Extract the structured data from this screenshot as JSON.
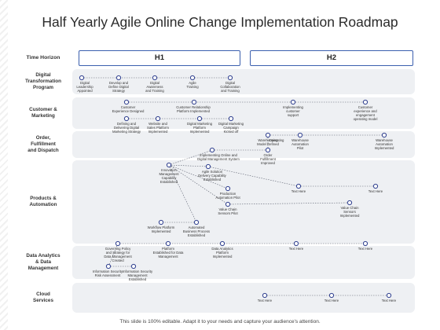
{
  "title": "Half Yearly Agile Online Change Implementation Roadmap",
  "time_horizon_label": "Time Horizon",
  "h1_label": "H1",
  "h2_label": "H2",
  "footer": "This slide is 100% editable. Adapt it to your needs and capture your audience's attention.",
  "rows": [
    "Digital\nTransformation\nProgram",
    "Customer &\nMarketing",
    "Order,\nFulfillment\nand Dispatch",
    "Products &\nAutomation",
    "Data Analytics\n& Data\nManagement",
    "Cloud\nServices"
  ],
  "milestones": [
    "Digital\nLeadership\nAppointed",
    "Develop and\nDefine Digital\nStrategy",
    "Digital\nAwareness\nand Training",
    "Agile\nTraining",
    "Digital\nCollaboration\nand Training",
    "Customer\nExperience Designed",
    "Customer Relationship\nPlatform Implemented",
    "Implementing\ncustomer\nsupport",
    "Customer\nexperience and\nengagement\noperating model",
    "Defining and\nDelivering Digital\nMarketing Strategy",
    "Website and\nSales Platform\nImplemented",
    "Digital Marketing\nPlatform\nImplemented",
    "Digital Marketing\nCampaign\nKicked off",
    "Warehousing\nModel Refined",
    "Operating",
    "Warehouse\nAutomation\nPilot",
    "Warehouse\nAutomation\nImplemented",
    "Order\nFulfillment\nImproved",
    "Implementing Online and\nDigital Management System",
    "Innovation\nManagement\nCapability\nEstablished",
    "Agile Solution\nDelivery Capability\nEstablished",
    "Production\nAutomation Pilot",
    "Value Chain\nSensors Pilot",
    "Text Here",
    "Text Here",
    "Value Chain\nSensors\nImplemented",
    "Workflow Platform\nImplemented",
    "Automated\nBusiness Process\nEstablished",
    "Governing Policy\nand Strategy for\nData Management\nCreated",
    "Platform\nEstablished for Data\nManagement",
    "Data Analytics\nPlatform\nImplemented",
    "Text Here",
    "Text Here",
    "Information Security\nRisk Assessment",
    "Information Security\nManagement\nEstablished",
    "Text Here",
    "Text Here",
    "Text Here"
  ],
  "colors": {
    "accent": "#3b5fae",
    "dot": "#2f3f8f",
    "band": "#eef0f3"
  }
}
